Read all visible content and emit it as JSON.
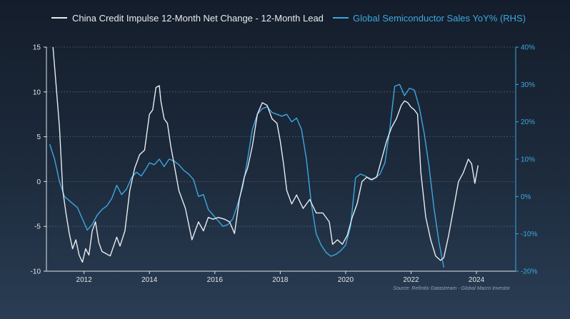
{
  "chart_data": {
    "type": "line",
    "source": "Source: Refinitiv Datastream - Global Macro Investor",
    "colors": {
      "china": "#e8ecf0",
      "semi": "#3da8e0",
      "grid": "#4a5a6c",
      "left_ticks": "#e0e4e8",
      "right_ticks": "#3da8e0"
    },
    "x_axis": {
      "min": 2010.85,
      "max": 2025.2,
      "ticks": [
        2012,
        2014,
        2016,
        2018,
        2020,
        2022,
        2024
      ]
    },
    "left_axis": {
      "min": -10,
      "max": 15,
      "ticks": [
        15,
        10,
        5,
        0,
        -5,
        -10
      ]
    },
    "right_axis": {
      "min": -20,
      "max": 40,
      "ticks": [
        "40%",
        "30%",
        "20%",
        "10%",
        "0%",
        "-10%",
        "-20%"
      ],
      "tick_values": [
        40,
        30,
        20,
        10,
        0,
        -10,
        -20
      ]
    },
    "series": [
      {
        "name": "China Credit Impulse 12-Month Net Change - 12-Month Lead",
        "axis": "left",
        "x": [
          2011.05,
          2011.15,
          2011.25,
          2011.35,
          2011.45,
          2011.55,
          2011.65,
          2011.75,
          2011.85,
          2011.95,
          2012.05,
          2012.15,
          2012.25,
          2012.35,
          2012.45,
          2012.55,
          2012.65,
          2012.8,
          2013.0,
          2013.1,
          2013.25,
          2013.4,
          2013.55,
          2013.7,
          2013.85,
          2014.0,
          2014.1,
          2014.2,
          2014.3,
          2014.35,
          2014.45,
          2014.55,
          2014.65,
          2014.75,
          2014.9,
          2015.1,
          2015.3,
          2015.5,
          2015.65,
          2015.8,
          2015.95,
          2016.1,
          2016.3,
          2016.45,
          2016.6,
          2016.75,
          2016.9,
          2017.0,
          2017.15,
          2017.3,
          2017.45,
          2017.6,
          2017.75,
          2017.9,
          2018.0,
          2018.1,
          2018.2,
          2018.35,
          2018.5,
          2018.7,
          2018.9,
          2019.1,
          2019.3,
          2019.5,
          2019.6,
          2019.75,
          2019.9,
          2020.05,
          2020.2,
          2020.35,
          2020.5,
          2020.65,
          2020.8,
          2020.95,
          2021.1,
          2021.25,
          2021.4,
          2021.55,
          2021.7,
          2021.8,
          2021.9,
          2022.0,
          2022.1,
          2022.2,
          2022.3,
          2022.45,
          2022.6,
          2022.75,
          2022.9,
          2023.0,
          2023.15,
          2023.3,
          2023.45,
          2023.6,
          2023.75,
          2023.85,
          2023.95,
          2024.05
        ],
        "values": [
          15.0,
          10.6,
          6.0,
          -1.0,
          -3.6,
          -5.8,
          -7.5,
          -6.5,
          -8.2,
          -9.0,
          -7.5,
          -8.2,
          -5.5,
          -4.5,
          -6.8,
          -7.8,
          -8.0,
          -8.3,
          -6.2,
          -7.2,
          -5.5,
          -1.0,
          1.5,
          3.0,
          3.5,
          7.5,
          8.0,
          10.5,
          10.7,
          9.0,
          7.0,
          6.5,
          4.0,
          2.0,
          -1.0,
          -3.0,
          -6.5,
          -4.5,
          -5.5,
          -4.0,
          -4.2,
          -4.0,
          -4.2,
          -4.5,
          -5.8,
          -2.0,
          0.5,
          1.5,
          4.0,
          7.5,
          8.8,
          8.5,
          7.0,
          6.5,
          4.5,
          2.0,
          -1.0,
          -2.5,
          -1.5,
          -3.0,
          -2.0,
          -3.5,
          -3.5,
          -4.5,
          -7.0,
          -6.5,
          -7.0,
          -6.0,
          -4.0,
          -2.5,
          0.0,
          0.5,
          0.2,
          0.5,
          2.5,
          4.5,
          6.0,
          7.0,
          8.5,
          9.0,
          8.8,
          8.3,
          8.0,
          7.5,
          1.0,
          -4.0,
          -6.5,
          -8.3,
          -8.8,
          -8.5,
          -6.0,
          -3.0,
          0.0,
          1.0,
          2.5,
          2.0,
          -0.2,
          1.8
        ]
      },
      {
        "name": "Global Semiconductor Sales YoY% (RHS)",
        "axis": "right",
        "x": [
          2010.95,
          2011.1,
          2011.25,
          2011.4,
          2011.6,
          2011.8,
          2012.0,
          2012.1,
          2012.25,
          2012.4,
          2012.55,
          2012.7,
          2012.85,
          2013.0,
          2013.15,
          2013.3,
          2013.45,
          2013.6,
          2013.75,
          2013.9,
          2014.0,
          2014.15,
          2014.3,
          2014.45,
          2014.6,
          2014.75,
          2014.9,
          2015.05,
          2015.2,
          2015.35,
          2015.5,
          2015.65,
          2015.8,
          2015.95,
          2016.1,
          2016.25,
          2016.4,
          2016.55,
          2016.7,
          2016.85,
          2017.0,
          2017.15,
          2017.3,
          2017.45,
          2017.6,
          2017.75,
          2017.9,
          2018.05,
          2018.2,
          2018.35,
          2018.5,
          2018.65,
          2018.8,
          2018.95,
          2019.1,
          2019.25,
          2019.4,
          2019.55,
          2019.7,
          2019.85,
          2020.0,
          2020.15,
          2020.3,
          2020.45,
          2020.6,
          2020.75,
          2020.9,
          2021.05,
          2021.2,
          2021.35,
          2021.5,
          2021.65,
          2021.8,
          2021.95,
          2022.1,
          2022.25,
          2022.4,
          2022.55,
          2022.7,
          2022.85,
          2023.0
        ],
        "values": [
          14.0,
          10.0,
          4.0,
          0.0,
          -1.5,
          -3.0,
          -7.0,
          -9.0,
          -7.5,
          -5.0,
          -3.5,
          -2.5,
          -0.5,
          3.0,
          0.5,
          2.0,
          5.0,
          6.5,
          5.5,
          7.5,
          9.0,
          8.5,
          10.0,
          8.0,
          10.0,
          9.5,
          8.5,
          7.0,
          6.0,
          4.5,
          0.0,
          0.5,
          -3.5,
          -5.0,
          -6.5,
          -8.0,
          -7.5,
          -6.0,
          -2.0,
          2.5,
          10.0,
          18.0,
          22.0,
          23.5,
          24.0,
          22.5,
          22.0,
          21.5,
          22.0,
          20.0,
          21.0,
          18.0,
          10.0,
          -2.0,
          -10.0,
          -13.0,
          -15.0,
          -16.0,
          -15.5,
          -14.5,
          -13.0,
          -8.0,
          5.0,
          6.0,
          5.5,
          4.5,
          5.0,
          6.0,
          9.0,
          18.0,
          29.5,
          30.0,
          27.0,
          29.0,
          28.5,
          24.0,
          17.0,
          8.0,
          -3.0,
          -12.0,
          -19.0
        ]
      }
    ]
  }
}
